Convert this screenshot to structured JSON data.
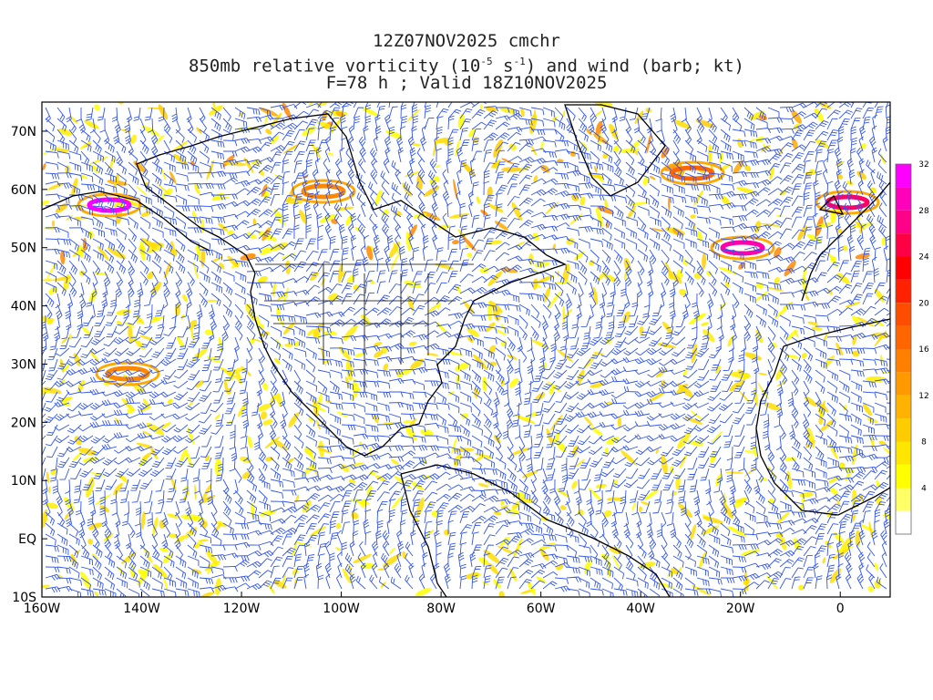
{
  "title": {
    "line1": "12Z07NOV2025 cmchr",
    "line2_a": "850mb relative vorticity (10",
    "line2_exp1": "-5",
    "line2_b": " s",
    "line2_exp2": "-1",
    "line2_c": ") and wind (barb; kt)",
    "line3": "F=78 h ; Valid 18Z10NOV2025"
  },
  "map": {
    "lat_labels": [
      "70N",
      "60N",
      "50N",
      "40N",
      "30N",
      "20N",
      "10N",
      "EQ",
      "10S"
    ],
    "lon_labels": [
      "160W",
      "140W",
      "120W",
      "100W",
      "80W",
      "60W",
      "40W",
      "20W",
      "0"
    ],
    "lon_range": [
      -160,
      10
    ],
    "lat_range": [
      -10,
      75
    ]
  },
  "colorbar": {
    "ticks": [
      "4",
      "8",
      "12",
      "16",
      "20",
      "24",
      "28",
      "32"
    ],
    "colors": [
      "#ffffff",
      "#ffff66",
      "#ffff00",
      "#ffe600",
      "#ffcc00",
      "#ffb300",
      "#ff9900",
      "#ff8000",
      "#ff6600",
      "#ff4d00",
      "#ff2200",
      "#ff0000",
      "#ff0044",
      "#ff0088",
      "#ff00bb",
      "#ff00ff"
    ]
  },
  "colors": {
    "barb": "#3355ee",
    "coast": "#000000"
  }
}
